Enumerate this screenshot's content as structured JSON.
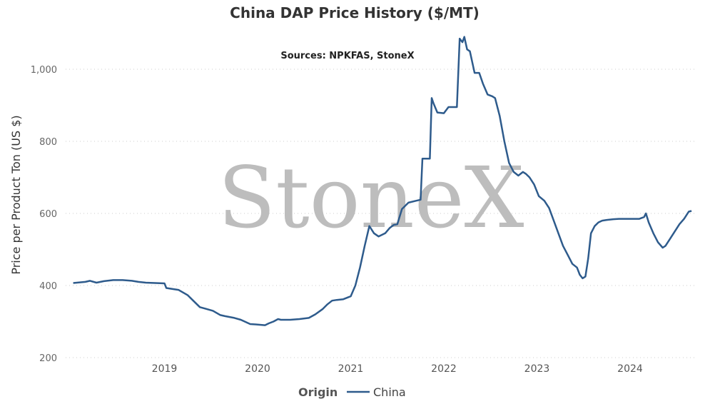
{
  "chart_data": {
    "type": "line",
    "title": "China DAP Price History ($/MT)",
    "subtitle": "Sources: NPKFAS, StoneX",
    "ylabel": "Price per Product Ton (US $)",
    "xlabel": "",
    "ylim": [
      200,
      1100
    ],
    "yticks": [
      200,
      400,
      600,
      800,
      1000
    ],
    "ytick_labels": [
      "200",
      "400",
      "600",
      "800",
      "1,000"
    ],
    "xticks": [
      2019,
      2020,
      2021,
      2022,
      2023,
      2024
    ],
    "xtick_labels": [
      "2019",
      "2020",
      "2021",
      "2022",
      "2023",
      "2024"
    ],
    "xlim": [
      2018.0,
      2024.7
    ],
    "grid": "horizontal-dotted",
    "legend_title": "Origin",
    "legend_position": "bottom-center",
    "watermark": "StoneX",
    "line_color": "#2e5b8c",
    "series": [
      {
        "name": "China",
        "x": [
          2018.02,
          2018.1,
          2018.15,
          2018.2,
          2018.27,
          2018.35,
          2018.45,
          2018.55,
          2018.65,
          2018.72,
          2018.8,
          2018.9,
          2019.0,
          2019.02,
          2019.1,
          2019.15,
          2019.25,
          2019.32,
          2019.38,
          2019.45,
          2019.52,
          2019.6,
          2019.65,
          2019.75,
          2019.82,
          2019.92,
          2019.98,
          2020.08,
          2020.12,
          2020.17,
          2020.22,
          2020.25,
          2020.35,
          2020.45,
          2020.55,
          2020.62,
          2020.7,
          2020.75,
          2020.8,
          2020.85,
          2020.92,
          2021.0,
          2021.05,
          2021.1,
          2021.15,
          2021.2,
          2021.25,
          2021.3,
          2021.37,
          2021.42,
          2021.46,
          2021.5,
          2021.55,
          2021.62,
          2021.7,
          2021.75,
          2021.77,
          2021.85,
          2021.87,
          2021.89,
          2021.93,
          2022.0,
          2022.05,
          2022.07,
          2022.14,
          2022.17,
          2022.2,
          2022.22,
          2022.25,
          2022.28,
          2022.33,
          2022.38,
          2022.42,
          2022.47,
          2022.52,
          2022.55,
          2022.6,
          2022.65,
          2022.7,
          2022.75,
          2022.8,
          2022.85,
          2022.88,
          2022.92,
          2022.97,
          2023.02,
          2023.08,
          2023.13,
          2023.18,
          2023.23,
          2023.28,
          2023.33,
          2023.38,
          2023.43,
          2023.46,
          2023.49,
          2023.52,
          2023.55,
          2023.58,
          2023.62,
          2023.66,
          2023.7,
          2023.75,
          2023.82,
          2023.88,
          2023.95,
          2024.02,
          2024.1,
          2024.15,
          2024.17,
          2024.2,
          2024.25,
          2024.3,
          2024.35,
          2024.38,
          2024.43,
          2024.48,
          2024.53,
          2024.58,
          2024.63,
          2024.66
        ],
        "values": [
          407,
          409,
          410,
          413,
          408,
          412,
          415,
          415,
          413,
          410,
          408,
          407,
          406,
          393,
          390,
          388,
          373,
          355,
          340,
          335,
          330,
          318,
          315,
          310,
          305,
          293,
          292,
          290,
          295,
          300,
          307,
          305,
          305,
          307,
          310,
          320,
          335,
          348,
          358,
          360,
          362,
          370,
          400,
          450,
          510,
          565,
          545,
          536,
          545,
          560,
          568,
          570,
          612,
          630,
          635,
          638,
          752,
          752,
          920,
          905,
          880,
          878,
          895,
          895,
          895,
          1085,
          1075,
          1090,
          1055,
          1050,
          990,
          990,
          960,
          930,
          925,
          920,
          870,
          800,
          740,
          715,
          705,
          715,
          710,
          700,
          680,
          648,
          635,
          615,
          580,
          545,
          510,
          485,
          460,
          450,
          430,
          420,
          425,
          475,
          545,
          565,
          575,
          580,
          582,
          584,
          585,
          585,
          585,
          585,
          590,
          600,
          575,
          545,
          520,
          505,
          510,
          530,
          550,
          570,
          585,
          605,
          607
        ]
      }
    ]
  }
}
